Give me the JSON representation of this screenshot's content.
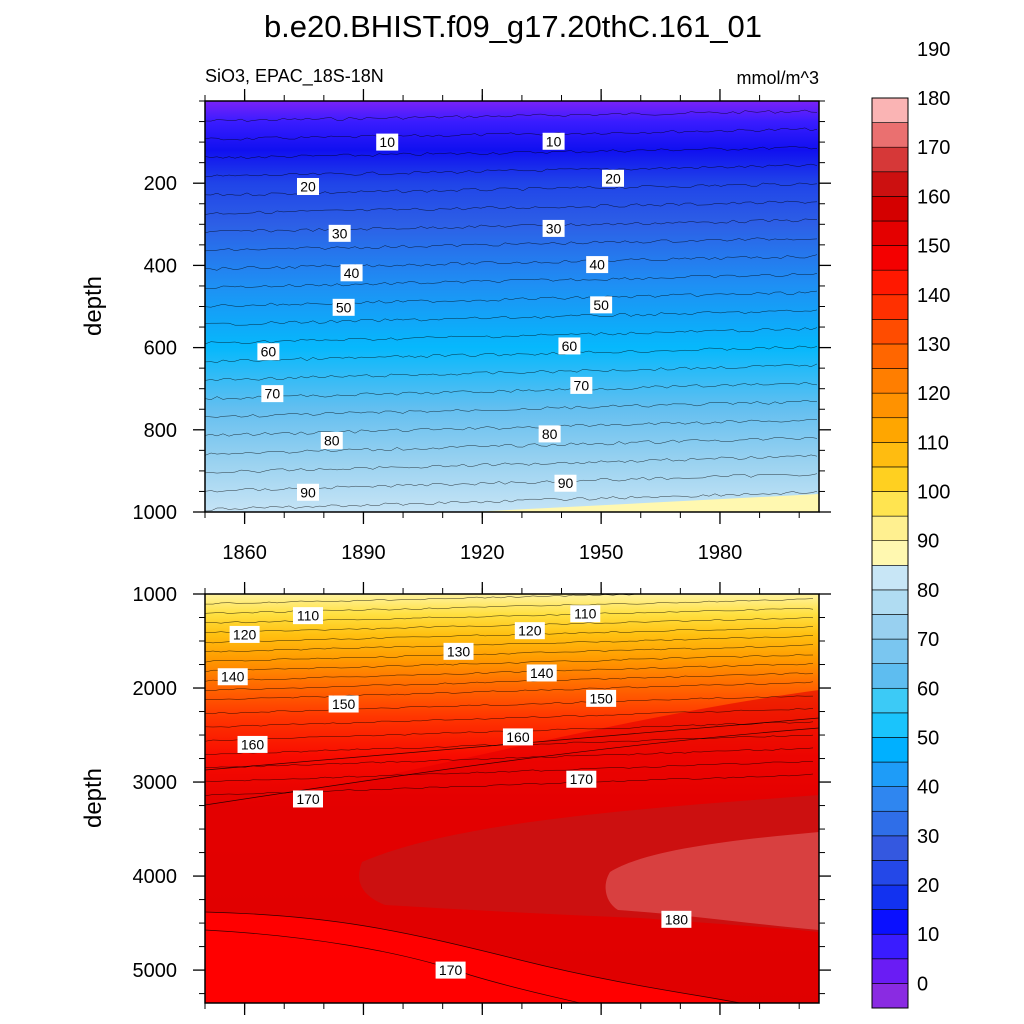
{
  "chart_data": {
    "type": "heatmap",
    "title": "b.e20.BHIST.f09_g17.20thC.161_01",
    "subtitle_left": "SiO3, EPAC_18S-18N",
    "subtitle_right": "mmol/m^3",
    "xlabel": "",
    "ylabel": "depth",
    "x_range": [
      1850,
      2005
    ],
    "x_ticks": [
      "1860",
      "1890",
      "1920",
      "1950",
      "1980"
    ],
    "grid": false,
    "legend": "right colorbar",
    "colorbar": {
      "labels": [
        "0",
        "10",
        "20",
        "30",
        "40",
        "50",
        "60",
        "70",
        "80",
        "90",
        "100",
        "110",
        "120",
        "130",
        "140",
        "150",
        "160",
        "170",
        "180",
        "190"
      ],
      "colors": [
        "#8a2be2",
        "#6a1cf4",
        "#3a1cff",
        "#0a10ff",
        "#1232f0",
        "#2448e8",
        "#3458e0",
        "#2f6ee8",
        "#2f86f0",
        "#1e9cf8",
        "#00b0ff",
        "#1ac4fc",
        "#3ccaf6",
        "#5ebdf0",
        "#7ac6f0",
        "#98d0f0",
        "#b0dcf2",
        "#c8e6f6",
        "#fff8b0",
        "#fff090",
        "#ffe450",
        "#ffd020",
        "#ffbc10",
        "#ffa600",
        "#ff9200",
        "#ff7e00",
        "#ff6600",
        "#ff4c00",
        "#ff3000",
        "#ff1800",
        "#f40000",
        "#e40000",
        "#d40000",
        "#cc1010",
        "#d63838",
        "#ea7070",
        "#fab4b4"
      ]
    },
    "panels": [
      {
        "name": "upper",
        "ylim": [
          1000,
          0
        ],
        "y_ticks": [
          "200",
          "400",
          "600",
          "800",
          "1000"
        ],
        "contour_labels": [
          {
            "text": "10",
            "year": 1896,
            "depth": 100
          },
          {
            "text": "10",
            "year": 1938,
            "depth": 98
          },
          {
            "text": "20",
            "year": 1876,
            "depth": 208
          },
          {
            "text": "20",
            "year": 1953,
            "depth": 188
          },
          {
            "text": "30",
            "year": 1884,
            "depth": 322
          },
          {
            "text": "30",
            "year": 1938,
            "depth": 310
          },
          {
            "text": "40",
            "year": 1887,
            "depth": 418
          },
          {
            "text": "40",
            "year": 1949,
            "depth": 398
          },
          {
            "text": "50",
            "year": 1885,
            "depth": 502
          },
          {
            "text": "50",
            "year": 1950,
            "depth": 496
          },
          {
            "text": "60",
            "year": 1866,
            "depth": 610
          },
          {
            "text": "60",
            "year": 1942,
            "depth": 596
          },
          {
            "text": "70",
            "year": 1867,
            "depth": 712
          },
          {
            "text": "70",
            "year": 1945,
            "depth": 692
          },
          {
            "text": "80",
            "year": 1882,
            "depth": 826
          },
          {
            "text": "80",
            "year": 1937,
            "depth": 810
          },
          {
            "text": "90",
            "year": 1876,
            "depth": 952
          },
          {
            "text": "90",
            "year": 1941,
            "depth": 930
          }
        ]
      },
      {
        "name": "lower",
        "ylim": [
          5350,
          1000
        ],
        "y_ticks": [
          "1000",
          "2000",
          "3000",
          "4000",
          "5000"
        ],
        "contour_labels": [
          {
            "text": "110",
            "year": 1876,
            "depth": 1230
          },
          {
            "text": "110",
            "year": 1946,
            "depth": 1210
          },
          {
            "text": "120",
            "year": 1860,
            "depth": 1430
          },
          {
            "text": "120",
            "year": 1932,
            "depth": 1390
          },
          {
            "text": "130",
            "year": 1914,
            "depth": 1610
          },
          {
            "text": "140",
            "year": 1857,
            "depth": 1880
          },
          {
            "text": "140",
            "year": 1935,
            "depth": 1840
          },
          {
            "text": "150",
            "year": 1885,
            "depth": 2170
          },
          {
            "text": "150",
            "year": 1950,
            "depth": 2110
          },
          {
            "text": "160",
            "year": 1862,
            "depth": 2600
          },
          {
            "text": "160",
            "year": 1929,
            "depth": 2520
          },
          {
            "text": "170",
            "year": 1876,
            "depth": 3180
          },
          {
            "text": "170",
            "year": 1945,
            "depth": 2970
          },
          {
            "text": "180",
            "year": 1969,
            "depth": 4460
          },
          {
            "text": "170",
            "year": 1912,
            "depth": 5000
          }
        ]
      }
    ]
  }
}
